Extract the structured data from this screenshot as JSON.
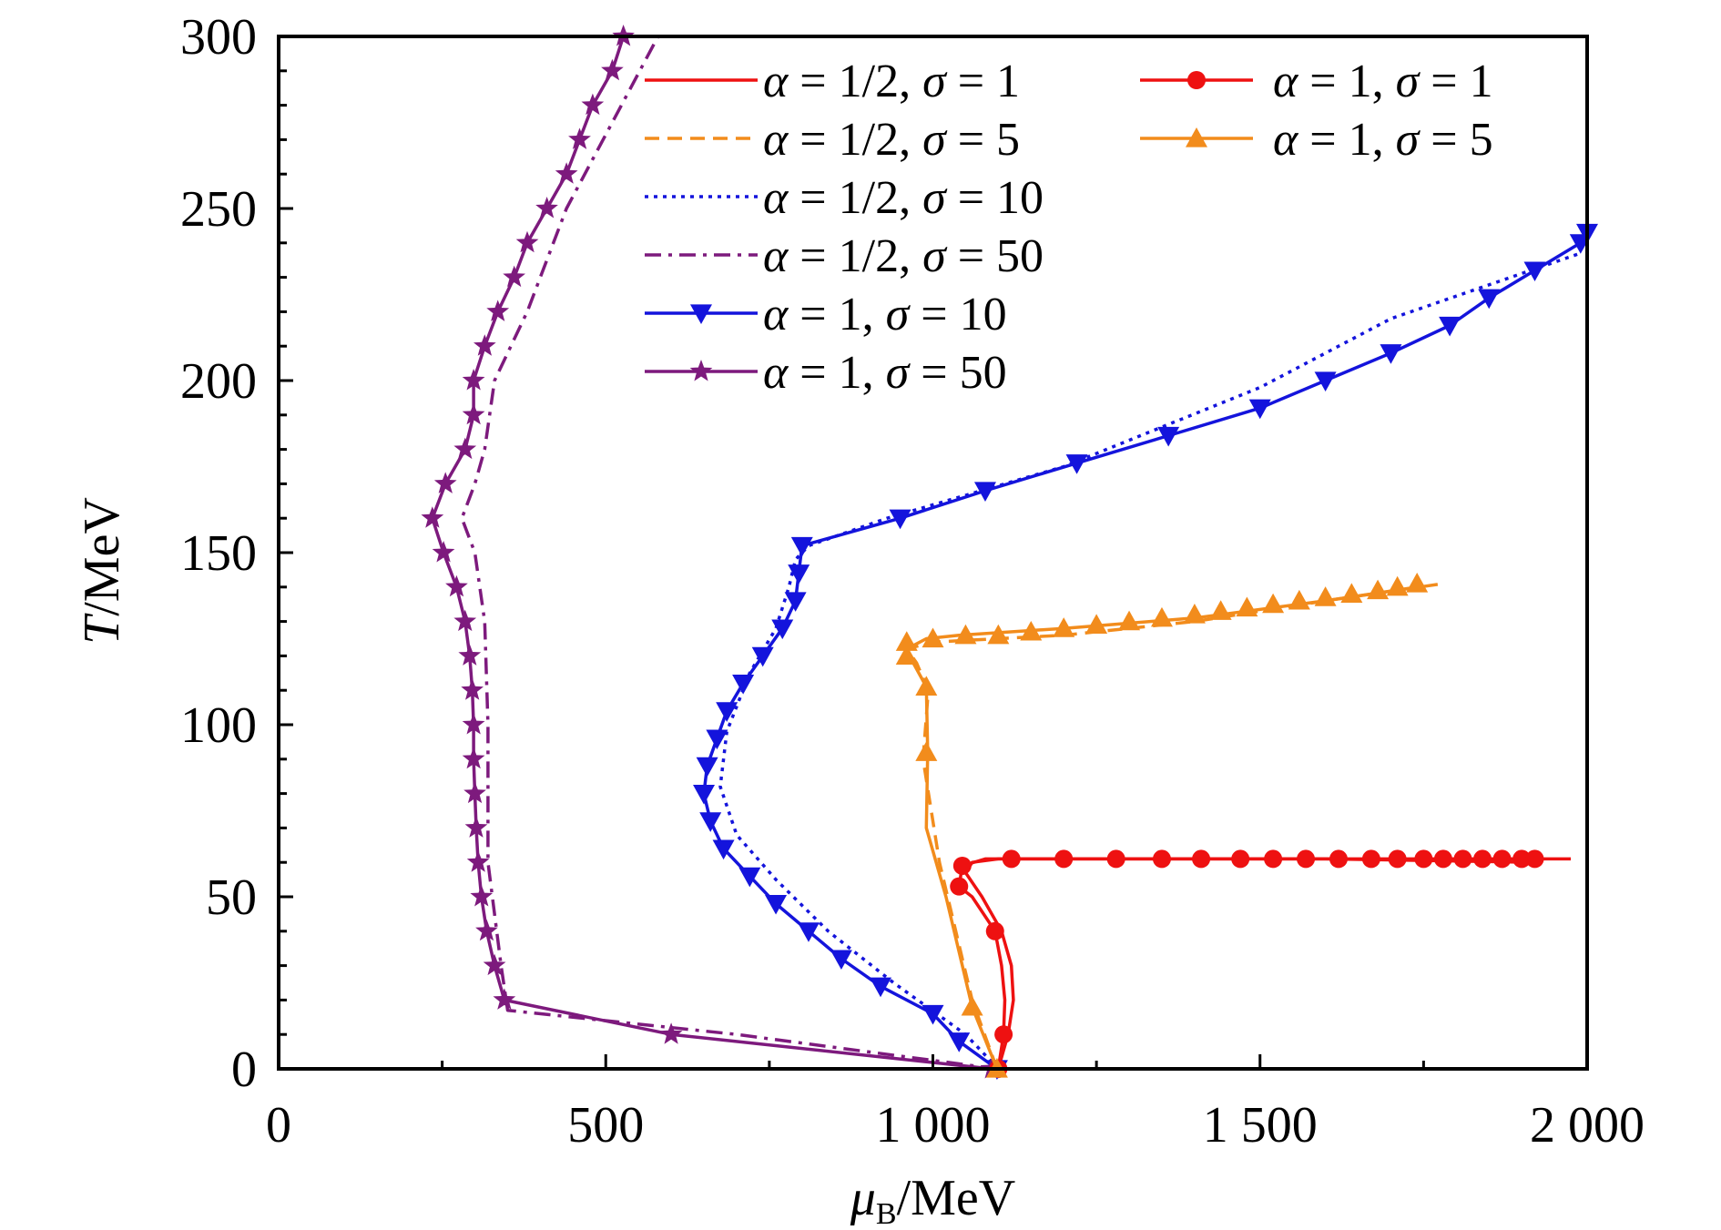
{
  "chart_data": {
    "type": "line",
    "xlabel": {
      "symbol": "μ",
      "subscript": "B",
      "unit": "/MeV"
    },
    "ylabel": {
      "symbol": "T",
      "unit": "/MeV"
    },
    "xlim": [
      0,
      2000
    ],
    "ylim": [
      0,
      300
    ],
    "xticks": [
      {
        "value": 0,
        "label": "0"
      },
      {
        "value": 500,
        "label": "500"
      },
      {
        "value": 1000,
        "label": "1 000"
      },
      {
        "value": 1500,
        "label": "1 500"
      },
      {
        "value": 2000,
        "label": "2 000"
      }
    ],
    "yticks": [
      {
        "value": 0,
        "label": "0"
      },
      {
        "value": 50,
        "label": "50"
      },
      {
        "value": 100,
        "label": "100"
      },
      {
        "value": 150,
        "label": "150"
      },
      {
        "value": 200,
        "label": "200"
      },
      {
        "value": 250,
        "label": "250"
      },
      {
        "value": 300,
        "label": "300"
      }
    ],
    "grid": false,
    "legend_position": "top-right",
    "series": [
      {
        "name": "α = 1/2, σ = 1",
        "alpha": "1/2",
        "sigma": "1",
        "color": "#ee1111",
        "dash": "solid",
        "marker": "none",
        "points": [
          [
            1100,
            0
          ],
          [
            1115,
            10
          ],
          [
            1123,
            20
          ],
          [
            1120,
            30
          ],
          [
            1105,
            40
          ],
          [
            1075,
            50
          ],
          [
            1050,
            57
          ],
          [
            1060,
            60
          ],
          [
            1100,
            61
          ],
          [
            1300,
            61
          ],
          [
            1600,
            61
          ],
          [
            1975,
            61
          ]
        ]
      },
      {
        "name": "α = 1/2, σ = 5",
        "alpha": "1/2",
        "sigma": "5",
        "color": "#f28c1c",
        "dash": "dashed",
        "marker": "none",
        "points": [
          [
            1098,
            0
          ],
          [
            1060,
            20
          ],
          [
            1010,
            60
          ],
          [
            985,
            90
          ],
          [
            993,
            110
          ],
          [
            975,
            118
          ],
          [
            960,
            122
          ],
          [
            1000,
            124
          ],
          [
            1200,
            126
          ],
          [
            1400,
            130
          ],
          [
            1600,
            136
          ],
          [
            1780,
            141
          ]
        ]
      },
      {
        "name": "α = 1/2, σ = 10",
        "alpha": "1/2",
        "sigma": "10",
        "color": "#1414dc",
        "dash": "dotted",
        "marker": "none",
        "points": [
          [
            1100,
            0
          ],
          [
            1050,
            10
          ],
          [
            940,
            25
          ],
          [
            840,
            40
          ],
          [
            760,
            55
          ],
          [
            700,
            68
          ],
          [
            675,
            82
          ],
          [
            685,
            98
          ],
          [
            720,
            115
          ],
          [
            760,
            128
          ],
          [
            780,
            140
          ],
          [
            790,
            148
          ],
          [
            810,
            152
          ],
          [
            930,
            160
          ],
          [
            1200,
            175
          ],
          [
            1500,
            198
          ],
          [
            1700,
            218
          ],
          [
            1990,
            237
          ]
        ]
      },
      {
        "name": "α = 1/2, σ = 50",
        "alpha": "1/2",
        "sigma": "50",
        "color": "#7d1a7d",
        "dash": "dashdot",
        "marker": "none",
        "points": [
          [
            1098,
            0
          ],
          [
            700,
            10
          ],
          [
            350,
            17
          ],
          [
            340,
            30
          ],
          [
            320,
            60
          ],
          [
            320,
            100
          ],
          [
            315,
            130
          ],
          [
            300,
            150
          ],
          [
            280,
            160
          ],
          [
            290,
            165
          ],
          [
            300,
            170
          ],
          [
            315,
            180
          ],
          [
            330,
            200
          ],
          [
            380,
            220
          ],
          [
            440,
            250
          ],
          [
            580,
            300
          ]
        ]
      },
      {
        "name": "α = 1, σ = 10",
        "alpha": "1",
        "sigma": "10",
        "color": "#1414dc",
        "dash": "solid",
        "marker": "triangle-down",
        "points": [
          [
            1098,
            0
          ],
          [
            1040,
            8
          ],
          [
            1000,
            16
          ],
          [
            920,
            24
          ],
          [
            860,
            32
          ],
          [
            810,
            40
          ],
          [
            760,
            48
          ],
          [
            720,
            56
          ],
          [
            680,
            64
          ],
          [
            660,
            72
          ],
          [
            650,
            80
          ],
          [
            655,
            88
          ],
          [
            670,
            96
          ],
          [
            685,
            104
          ],
          [
            710,
            112
          ],
          [
            740,
            120
          ],
          [
            770,
            128
          ],
          [
            790,
            136
          ],
          [
            795,
            144
          ],
          [
            800,
            152
          ],
          [
            950,
            160
          ],
          [
            1080,
            168
          ],
          [
            1220,
            176
          ],
          [
            1360,
            184
          ],
          [
            1500,
            192
          ],
          [
            1600,
            200
          ],
          [
            1700,
            208
          ],
          [
            1790,
            216
          ],
          [
            1850,
            224
          ],
          [
            1920,
            232
          ],
          [
            1990,
            240
          ],
          [
            2000,
            243
          ]
        ],
        "markers": [
          [
            1098,
            0
          ],
          [
            1040,
            8
          ],
          [
            1000,
            16
          ],
          [
            920,
            24
          ],
          [
            860,
            32
          ],
          [
            810,
            40
          ],
          [
            760,
            48
          ],
          [
            720,
            56
          ],
          [
            680,
            64
          ],
          [
            660,
            72
          ],
          [
            650,
            80
          ],
          [
            655,
            88
          ],
          [
            670,
            96
          ],
          [
            685,
            104
          ],
          [
            710,
            112
          ],
          [
            740,
            120
          ],
          [
            770,
            128
          ],
          [
            790,
            136
          ],
          [
            795,
            144
          ],
          [
            800,
            152
          ],
          [
            950,
            160
          ],
          [
            1080,
            168
          ],
          [
            1220,
            176
          ],
          [
            1360,
            184
          ],
          [
            1500,
            192
          ],
          [
            1600,
            200
          ],
          [
            1700,
            208
          ],
          [
            1790,
            216
          ],
          [
            1850,
            224
          ],
          [
            1920,
            232
          ],
          [
            1990,
            240
          ],
          [
            2000,
            243
          ]
        ]
      },
      {
        "name": "α = 1, σ = 50",
        "alpha": "1",
        "sigma": "50",
        "color": "#7d1a7d",
        "dash": "solid",
        "marker": "star",
        "points": [
          [
            1090,
            0
          ],
          [
            600,
            10
          ],
          [
            345,
            20
          ],
          [
            330,
            30
          ],
          [
            318,
            40
          ],
          [
            310,
            50
          ],
          [
            305,
            60
          ],
          [
            302,
            70
          ],
          [
            300,
            80
          ],
          [
            298,
            90
          ],
          [
            298,
            100
          ],
          [
            296,
            110
          ],
          [
            292,
            120
          ],
          [
            285,
            130
          ],
          [
            272,
            140
          ],
          [
            252,
            150
          ],
          [
            235,
            160
          ],
          [
            255,
            170
          ],
          [
            285,
            180
          ],
          [
            298,
            190
          ],
          [
            298,
            200
          ],
          [
            315,
            210
          ],
          [
            335,
            220
          ],
          [
            360,
            230
          ],
          [
            380,
            240
          ],
          [
            410,
            250
          ],
          [
            440,
            260
          ],
          [
            460,
            270
          ],
          [
            480,
            280
          ],
          [
            510,
            290
          ],
          [
            527,
            300
          ]
        ],
        "markers": [
          [
            1090,
            0
          ],
          [
            600,
            10
          ],
          [
            345,
            20
          ],
          [
            330,
            30
          ],
          [
            318,
            40
          ],
          [
            310,
            50
          ],
          [
            305,
            60
          ],
          [
            302,
            70
          ],
          [
            300,
            80
          ],
          [
            298,
            90
          ],
          [
            298,
            100
          ],
          [
            296,
            110
          ],
          [
            292,
            120
          ],
          [
            285,
            130
          ],
          [
            272,
            140
          ],
          [
            252,
            150
          ],
          [
            235,
            160
          ],
          [
            255,
            170
          ],
          [
            285,
            180
          ],
          [
            298,
            190
          ],
          [
            298,
            200
          ],
          [
            315,
            210
          ],
          [
            335,
            220
          ],
          [
            360,
            230
          ],
          [
            380,
            240
          ],
          [
            410,
            250
          ],
          [
            440,
            260
          ],
          [
            460,
            270
          ],
          [
            480,
            280
          ],
          [
            510,
            290
          ],
          [
            527,
            300
          ]
        ]
      },
      {
        "name": "α = 1, σ = 1",
        "alpha": "1",
        "sigma": "1",
        "color": "#ee1111",
        "dash": "solid",
        "marker": "circle",
        "points": [
          [
            1100,
            0
          ],
          [
            1108,
            10
          ],
          [
            1110,
            20
          ],
          [
            1105,
            30
          ],
          [
            1095,
            40
          ],
          [
            1060,
            50
          ],
          [
            1040,
            53
          ],
          [
            1045,
            59
          ],
          [
            1080,
            61
          ],
          [
            1120,
            61
          ],
          [
            1300,
            61
          ],
          [
            1600,
            61
          ],
          [
            1920,
            60
          ]
        ],
        "markers": [
          [
            1100,
            0
          ],
          [
            1108,
            10
          ],
          [
            1095,
            40
          ],
          [
            1040,
            53
          ],
          [
            1045,
            59
          ],
          [
            1120,
            61
          ],
          [
            1200,
            61
          ],
          [
            1280,
            61
          ],
          [
            1350,
            61
          ],
          [
            1410,
            61
          ],
          [
            1470,
            61
          ],
          [
            1520,
            61
          ],
          [
            1570,
            61
          ],
          [
            1620,
            61
          ],
          [
            1670,
            61
          ],
          [
            1710,
            61
          ],
          [
            1750,
            61
          ],
          [
            1780,
            61
          ],
          [
            1810,
            61
          ],
          [
            1840,
            61
          ],
          [
            1870,
            61
          ],
          [
            1900,
            61
          ],
          [
            1920,
            61
          ]
        ]
      },
      {
        "name": "α = 1, σ = 5",
        "alpha": "1",
        "sigma": "5",
        "color": "#f28c1c",
        "dash": "solid",
        "marker": "triangle-up",
        "points": [
          [
            1098,
            0
          ],
          [
            1060,
            18
          ],
          [
            1020,
            50
          ],
          [
            990,
            70
          ],
          [
            992,
            92
          ],
          [
            990,
            111
          ],
          [
            970,
            118
          ],
          [
            960,
            122
          ],
          [
            990,
            125
          ],
          [
            1040,
            126
          ],
          [
            1200,
            128
          ],
          [
            1400,
            131
          ],
          [
            1600,
            136
          ],
          [
            1740,
            140
          ]
        ],
        "markers": [
          [
            1098,
            0
          ],
          [
            1060,
            18
          ],
          [
            990,
            92
          ],
          [
            990,
            111
          ],
          [
            960,
            120
          ],
          [
            960,
            124
          ],
          [
            1000,
            125
          ],
          [
            1050,
            126
          ],
          [
            1100,
            126
          ],
          [
            1150,
            127
          ],
          [
            1200,
            128
          ],
          [
            1250,
            129
          ],
          [
            1300,
            130
          ],
          [
            1350,
            131
          ],
          [
            1400,
            132
          ],
          [
            1440,
            133
          ],
          [
            1480,
            134
          ],
          [
            1520,
            135
          ],
          [
            1560,
            136
          ],
          [
            1600,
            137
          ],
          [
            1640,
            138
          ],
          [
            1680,
            139
          ],
          [
            1710,
            140
          ],
          [
            1740,
            141
          ]
        ]
      }
    ],
    "legend": {
      "columns": [
        [
          "α = 1/2, σ = 1",
          "α = 1/2, σ = 5",
          "α = 1/2, σ = 10",
          "α = 1/2, σ = 50",
          "α = 1, σ = 10",
          "α = 1, σ = 50"
        ],
        [
          "α = 1, σ = 1",
          "α = 1, σ = 5"
        ]
      ]
    }
  }
}
